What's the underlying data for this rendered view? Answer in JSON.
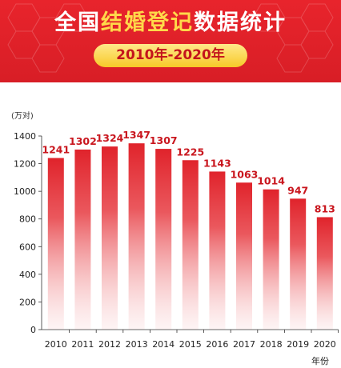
{
  "header": {
    "title_white_1": "全国",
    "title_yellow": "结婚登记",
    "title_white_2": "数据统计",
    "subtitle": "2010年-2020年"
  },
  "colors": {
    "header_red": "#e0222a",
    "title_yellow": "#ffd94a",
    "bar_red": "#e0232b",
    "label_red": "#c9161e"
  },
  "chart_data": {
    "type": "bar",
    "title": "",
    "ylabel": "(万对)",
    "xlabel": "年份",
    "ylim": [
      0,
      1400
    ],
    "yticks": [
      0,
      200,
      400,
      600,
      800,
      1000,
      1200,
      1400
    ],
    "grid": false,
    "categories": [
      "2010",
      "2011",
      "2012",
      "2013",
      "2014",
      "2015",
      "2016",
      "2017",
      "2018",
      "2019",
      "2020"
    ],
    "values": [
      1241,
      1302,
      1324,
      1347,
      1307,
      1225,
      1143,
      1063,
      1014,
      947,
      813
    ]
  }
}
